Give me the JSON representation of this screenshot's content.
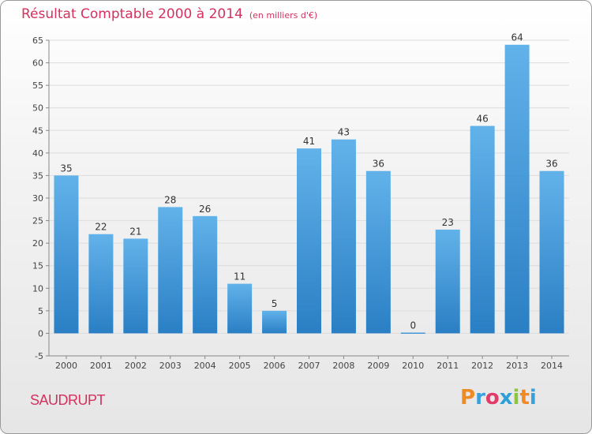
{
  "header": {
    "title": "Résultat Comptable 2000 à 2014",
    "subtitle": "(en milliers d'€)"
  },
  "footer": {
    "commune": "SAUDRUPT",
    "logo_text": "Proxiti",
    "logo_colors": [
      "#f08a24",
      "#3aa0dc",
      "#e23b6a",
      "#2f9fd8",
      "#8cc63f",
      "#f08a24",
      "#3aa0dc"
    ]
  },
  "colors": {
    "bar_light": "#62b2ea",
    "bar_dark": "#2a7fc4",
    "title": "#d3325f",
    "grid": "#dcdcdc"
  },
  "chart_data": {
    "type": "bar",
    "categories": [
      "2000",
      "2001",
      "2002",
      "2003",
      "2004",
      "2005",
      "2006",
      "2007",
      "2008",
      "2009",
      "2010",
      "2011",
      "2012",
      "2013",
      "2014"
    ],
    "values": [
      35,
      22,
      21,
      28,
      26,
      11,
      5,
      41,
      43,
      36,
      0,
      23,
      46,
      64,
      36
    ],
    "title": "Résultat Comptable 2000 à 2014",
    "xlabel": "",
    "ylabel": "",
    "ylim": [
      -5,
      65
    ],
    "yticks": [
      -5,
      0,
      5,
      10,
      15,
      20,
      25,
      30,
      35,
      40,
      45,
      50,
      55,
      60,
      65
    ],
    "grid": true,
    "legend": "none"
  }
}
